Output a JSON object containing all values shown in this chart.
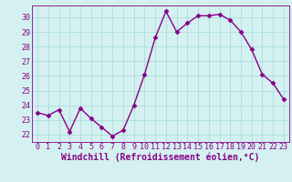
{
  "x": [
    0,
    1,
    2,
    3,
    4,
    5,
    6,
    7,
    8,
    9,
    10,
    11,
    12,
    13,
    14,
    15,
    16,
    17,
    18,
    19,
    20,
    21,
    22,
    23
  ],
  "y": [
    23.5,
    23.3,
    23.7,
    22.2,
    23.8,
    23.1,
    22.5,
    21.9,
    22.3,
    24.0,
    26.1,
    28.6,
    30.4,
    29.0,
    29.6,
    30.1,
    30.1,
    30.2,
    29.8,
    29.0,
    27.8,
    26.1,
    25.5,
    24.4
  ],
  "ylim": [
    21.5,
    30.8
  ],
  "yticks": [
    22,
    23,
    24,
    25,
    26,
    27,
    28,
    29,
    30
  ],
  "xticks": [
    0,
    1,
    2,
    3,
    4,
    5,
    6,
    7,
    8,
    9,
    10,
    11,
    12,
    13,
    14,
    15,
    16,
    17,
    18,
    19,
    20,
    21,
    22,
    23
  ],
  "line_color": "#880088",
  "marker": "D",
  "marker_size": 2.5,
  "bg_color": "#d4f0f0",
  "grid_color": "#aadddd",
  "xlabel": "Windchill (Refroidissement éolien,°C)",
  "xlabel_fontsize": 7,
  "tick_fontsize": 6,
  "line_width": 1.0
}
